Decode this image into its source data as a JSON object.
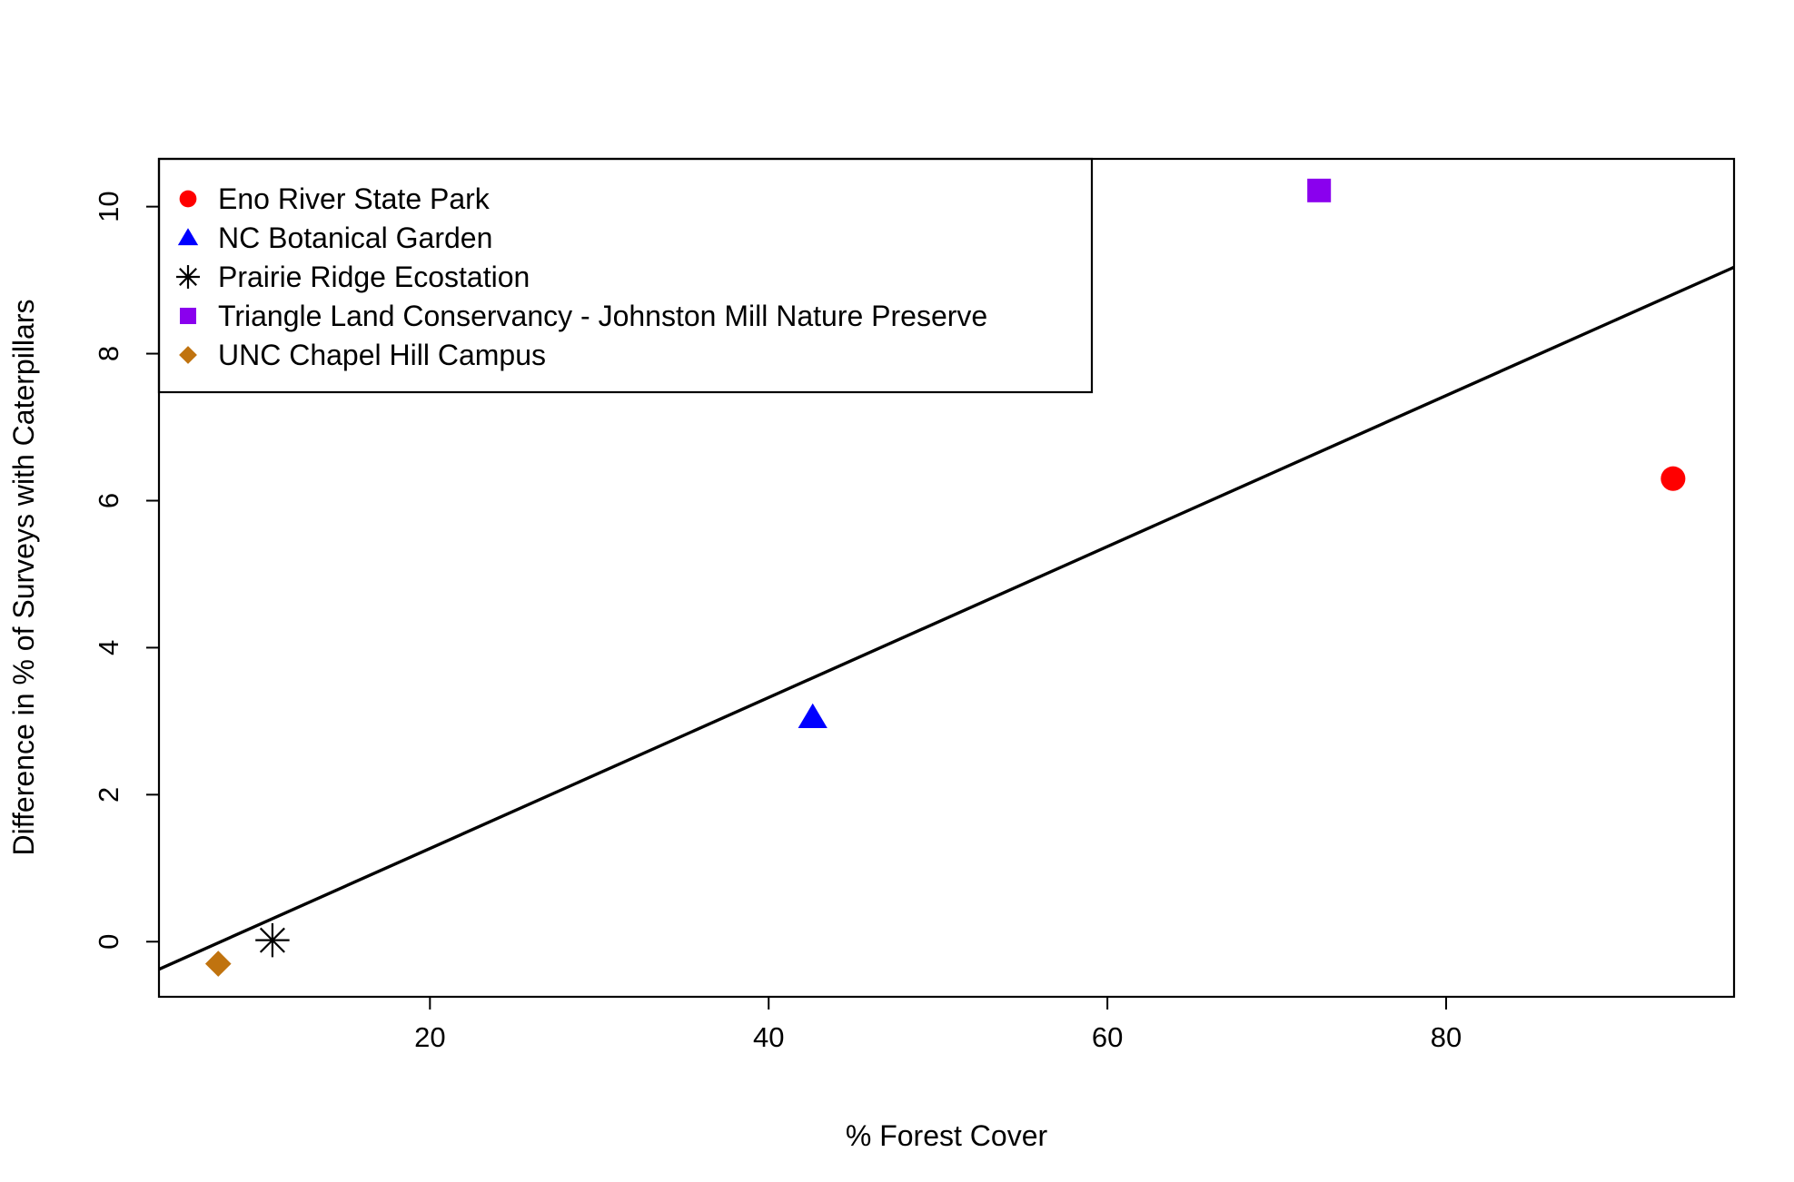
{
  "chart_data": {
    "type": "scatter",
    "xlabel": "% Forest Cover",
    "ylabel": "Difference in  % of Surveys with Caterpillars",
    "xlim": [
      4,
      97
    ],
    "ylim": [
      -0.75,
      10.65
    ],
    "x_ticks": [
      20,
      40,
      60,
      80
    ],
    "y_ticks": [
      0,
      2,
      4,
      6,
      8,
      10
    ],
    "legend_position": "top-left",
    "grid": false,
    "series": [
      {
        "name": "Eno River State Park",
        "x": [
          93.4
        ],
        "y": [
          6.3
        ],
        "marker": "circle",
        "color": "#ff0000"
      },
      {
        "name": "NC Botanical Garden",
        "x": [
          42.6
        ],
        "y": [
          3.05
        ],
        "marker": "triangle",
        "color": "#0000ff"
      },
      {
        "name": "Prairie Ridge Ecostation",
        "x": [
          10.7
        ],
        "y": [
          0.02
        ],
        "marker": "asterisk",
        "color": "#000000"
      },
      {
        "name": "Triangle Land Conservancy - Johnston Mill Nature Preserve",
        "x": [
          72.5
        ],
        "y": [
          10.22
        ],
        "marker": "square",
        "color": "#8a00ee"
      },
      {
        "name": "UNC Chapel Hill Campus",
        "x": [
          7.5
        ],
        "y": [
          -0.3
        ],
        "marker": "diamond",
        "color": "#c0730f"
      }
    ],
    "regression_line": {
      "intercept": -0.786,
      "slope": 0.1027,
      "color": "#000000"
    }
  }
}
